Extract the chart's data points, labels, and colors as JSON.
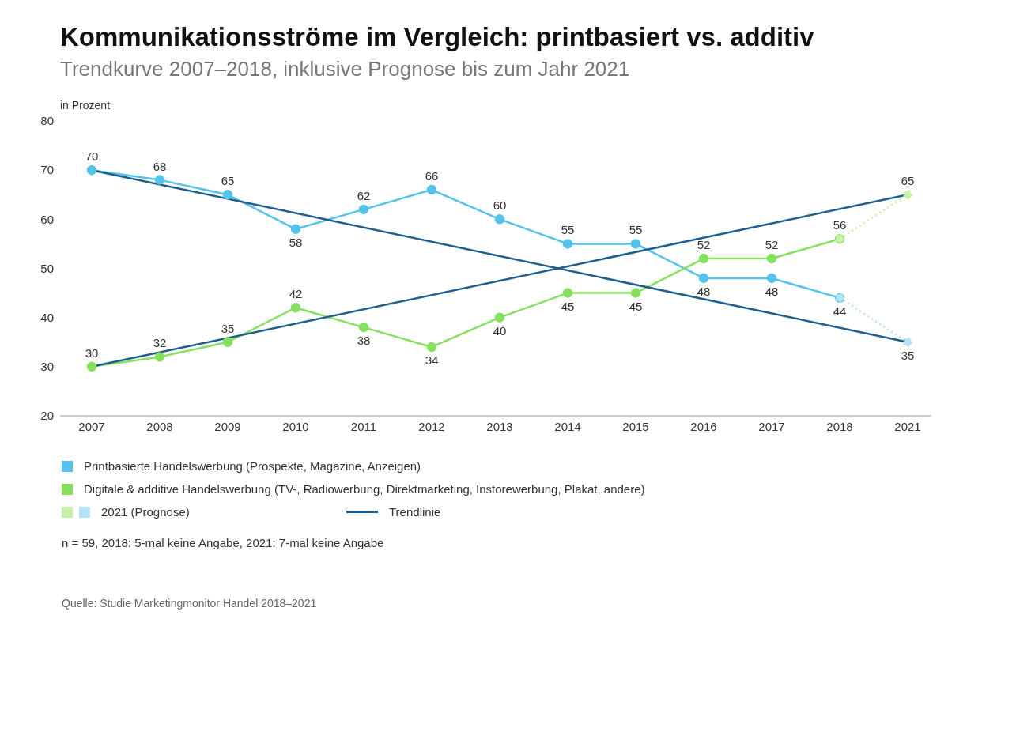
{
  "chart_data": {
    "type": "line",
    "title": "Kommunikationsströme im Vergleich: printbasiert vs. additiv",
    "subtitle": "Trendkurve 2007–2018, inklusive Prognose bis zum Jahr 2021",
    "ylabel": "in Prozent",
    "categories": [
      "2007",
      "2008",
      "2009",
      "2010",
      "2011",
      "2012",
      "2013",
      "2014",
      "2015",
      "2016",
      "2017",
      "2018",
      "2021"
    ],
    "ylim": [
      20,
      80
    ],
    "yticks": [
      20,
      30,
      40,
      50,
      60,
      70,
      80
    ],
    "legend": "bottom",
    "marker": "circle",
    "series": [
      {
        "name": "Printbasierte Handelswerbung (Prospekte, Magazine, Anzeigen)",
        "color": "#55c3e9",
        "values": [
          70,
          68,
          65,
          58,
          62,
          66,
          60,
          55,
          55,
          48,
          48,
          44,
          null
        ],
        "value_labels": [
          "70",
          "68",
          "65",
          "58",
          "62",
          "66",
          "60",
          "55",
          "55",
          "48",
          "48",
          "44",
          null
        ]
      },
      {
        "name": "Digitale & additive Handelswerbung (TV-, Radiowerbung, Direktmarketing, Instorewerbung, Plakat, andere)",
        "color": "#86e060",
        "values": [
          30,
          32,
          35,
          42,
          38,
          34,
          40,
          45,
          45,
          52,
          52,
          56,
          null
        ],
        "value_labels": [
          "30",
          "32",
          "35",
          "42",
          "38",
          "34",
          "40",
          "45",
          "45",
          "52",
          "52",
          "56",
          null
        ]
      },
      {
        "name": "2021 (Prognose)",
        "color": "#b3e3f5",
        "line_style": "dotted",
        "values": [
          null,
          null,
          null,
          null,
          null,
          null,
          null,
          null,
          null,
          null,
          null,
          44,
          35
        ],
        "value_labels": [
          null,
          null,
          null,
          null,
          null,
          null,
          null,
          null,
          null,
          null,
          null,
          null,
          "35"
        ]
      },
      {
        "color": "#c8f0a8",
        "line_style": "dotted",
        "values": [
          null,
          null,
          null,
          null,
          null,
          null,
          null,
          null,
          null,
          null,
          null,
          56,
          65
        ],
        "value_labels": [
          null,
          null,
          null,
          null,
          null,
          null,
          null,
          null,
          null,
          null,
          null,
          null,
          "65"
        ]
      },
      {
        "name": "Trendlinie",
        "color": "#1f5f8f",
        "marker": "none",
        "values": [
          70,
          null,
          null,
          null,
          null,
          null,
          null,
          null,
          null,
          null,
          null,
          null,
          35
        ]
      },
      {
        "color": "#1f5f8f",
        "marker": "none",
        "values": [
          30,
          null,
          null,
          null,
          null,
          null,
          null,
          null,
          null,
          null,
          null,
          null,
          65
        ]
      }
    ],
    "annotations": [
      "n = 59, 2018: 5-mal keine Angabe, 2021: 7-mal keine Angabe",
      "Quelle: Studie Marketingmonitor Handel 2018–2021"
    ]
  }
}
